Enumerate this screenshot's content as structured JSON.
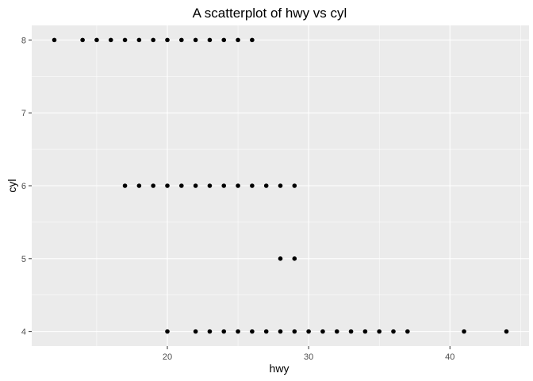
{
  "chart_data": {
    "type": "scatter",
    "title": "A scatterplot of hwy vs cyl",
    "xlabel": "hwy",
    "ylabel": "cyl",
    "xlim": [
      10.4,
      45.6
    ],
    "ylim": [
      3.8,
      8.2
    ],
    "x_ticks": [
      20,
      30,
      40
    ],
    "x_tick_labels": [
      "20",
      "30",
      "40"
    ],
    "x_minor_ticks": [
      15,
      25,
      35,
      45
    ],
    "y_ticks": [
      4,
      5,
      6,
      7,
      8
    ],
    "y_tick_labels": [
      "4",
      "5",
      "6",
      "7",
      "8"
    ],
    "y_minor_ticks": [
      4.5,
      5.5,
      6.5,
      7.5
    ],
    "grid": true,
    "colors": {
      "panel": "#ebebeb",
      "grid": "#ffffff",
      "point": "#000000",
      "tick_text": "#4d4d4d",
      "tick_mark": "#333333"
    },
    "points": [
      {
        "x": 12,
        "y": 8
      },
      {
        "x": 14,
        "y": 8
      },
      {
        "x": 15,
        "y": 8
      },
      {
        "x": 16,
        "y": 8
      },
      {
        "x": 17,
        "y": 8
      },
      {
        "x": 18,
        "y": 8
      },
      {
        "x": 19,
        "y": 8
      },
      {
        "x": 20,
        "y": 8
      },
      {
        "x": 21,
        "y": 8
      },
      {
        "x": 22,
        "y": 8
      },
      {
        "x": 23,
        "y": 8
      },
      {
        "x": 24,
        "y": 8
      },
      {
        "x": 25,
        "y": 8
      },
      {
        "x": 26,
        "y": 8
      },
      {
        "x": 17,
        "y": 6
      },
      {
        "x": 18,
        "y": 6
      },
      {
        "x": 19,
        "y": 6
      },
      {
        "x": 20,
        "y": 6
      },
      {
        "x": 21,
        "y": 6
      },
      {
        "x": 22,
        "y": 6
      },
      {
        "x": 23,
        "y": 6
      },
      {
        "x": 24,
        "y": 6
      },
      {
        "x": 25,
        "y": 6
      },
      {
        "x": 26,
        "y": 6
      },
      {
        "x": 27,
        "y": 6
      },
      {
        "x": 28,
        "y": 6
      },
      {
        "x": 29,
        "y": 6
      },
      {
        "x": 28,
        "y": 5
      },
      {
        "x": 29,
        "y": 5
      },
      {
        "x": 20,
        "y": 4
      },
      {
        "x": 22,
        "y": 4
      },
      {
        "x": 23,
        "y": 4
      },
      {
        "x": 24,
        "y": 4
      },
      {
        "x": 25,
        "y": 4
      },
      {
        "x": 26,
        "y": 4
      },
      {
        "x": 27,
        "y": 4
      },
      {
        "x": 28,
        "y": 4
      },
      {
        "x": 29,
        "y": 4
      },
      {
        "x": 30,
        "y": 4
      },
      {
        "x": 31,
        "y": 4
      },
      {
        "x": 32,
        "y": 4
      },
      {
        "x": 33,
        "y": 4
      },
      {
        "x": 34,
        "y": 4
      },
      {
        "x": 35,
        "y": 4
      },
      {
        "x": 36,
        "y": 4
      },
      {
        "x": 37,
        "y": 4
      },
      {
        "x": 41,
        "y": 4
      },
      {
        "x": 44,
        "y": 4
      }
    ]
  }
}
